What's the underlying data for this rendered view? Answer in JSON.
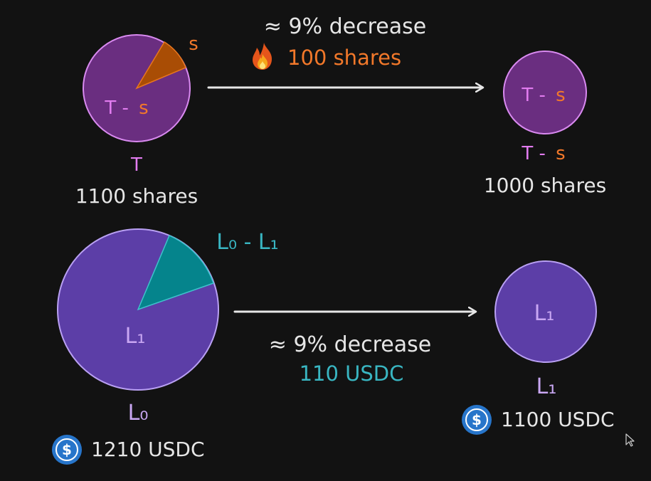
{
  "colors": {
    "background": "#121212",
    "shares_pie_fill": "#6a2e80",
    "shares_pie_stroke": "#d98af0",
    "burn_slice": "#a94d05",
    "burn_slice_stroke": "#e8761e",
    "usdc_pie_fill": "#5c3ea7",
    "usdc_pie_stroke": "#b9a0f3",
    "usdc_slice": "#05848c",
    "usdc_slice_stroke": "#3fc2cc",
    "pink_text": "#e27cf0",
    "orange_text": "#f2782a",
    "teal_text": "#39b6c2",
    "white_text": "#e6e6e6",
    "coin_blue": "#2775ca"
  },
  "icons": {
    "fire": "fire-icon",
    "usdc": "usdc-coin-icon"
  },
  "top": {
    "arrow_label_1": "≈ 9% decrease",
    "arrow_label_2": "100 shares",
    "left_pie": {
      "slice_label": "s",
      "body_label_main": "T -",
      "body_label_sub": "s",
      "caption_symbol": "T",
      "caption_value": "1100 shares"
    },
    "right_pie": {
      "body_label_main": "T -",
      "body_label_sub": "s",
      "caption_main": "T -",
      "caption_sub": "s",
      "caption_value": "1000 shares"
    }
  },
  "bottom": {
    "arrow_label_1": "≈ 9% decrease",
    "arrow_label_2": "110 USDC",
    "left_pie": {
      "slice_label": "L₀ - L₁",
      "body_label": "L₁",
      "caption_symbol": "L₀",
      "caption_value": "1210 USDC"
    },
    "right_pie": {
      "body_label": "L₁",
      "caption_symbol": "L₁",
      "caption_value": "1100 USDC"
    }
  }
}
